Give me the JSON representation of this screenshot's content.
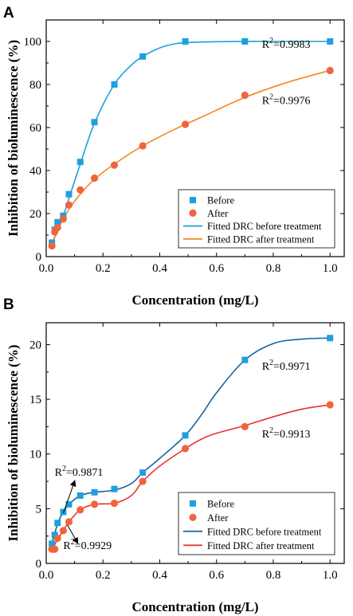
{
  "chart_data": [
    {
      "type": "scatter",
      "panel_label": "A",
      "xlabel": "Concentration (mg/L)",
      "ylabel": "Inhibition of bioluminescence (%)",
      "xlim": [
        0,
        1.05
      ],
      "ylim": [
        0,
        110
      ],
      "xticks": [
        0.0,
        0.2,
        0.4,
        0.6,
        0.8,
        1.0
      ],
      "xtick_labels": [
        "0.0",
        "0.2",
        "0.4",
        "0.6",
        "0.8",
        "1.0"
      ],
      "yticks": [
        0,
        20,
        40,
        60,
        80,
        100
      ],
      "ytick_labels": [
        "0",
        "20",
        "40",
        "60",
        "80",
        "100"
      ],
      "grid": false,
      "legend_position": "bottom-right",
      "series": [
        {
          "name": "Before",
          "kind": "points",
          "marker": "square",
          "color": "#1ea0dc",
          "x": [
            0.02,
            0.03,
            0.04,
            0.06,
            0.08,
            0.12,
            0.17,
            0.24,
            0.34,
            0.49,
            0.7,
            1.0
          ],
          "y": [
            6.5,
            12.5,
            16,
            19,
            29,
            44,
            62.5,
            80,
            93,
            100,
            100,
            100
          ]
        },
        {
          "name": "After",
          "kind": "points",
          "marker": "circle",
          "color": "#f0643c",
          "x": [
            0.02,
            0.03,
            0.04,
            0.06,
            0.08,
            0.12,
            0.17,
            0.24,
            0.34,
            0.49,
            0.7,
            1.0
          ],
          "y": [
            5,
            11.5,
            13.5,
            17.5,
            24,
            31,
            36.5,
            42.5,
            51.5,
            61.5,
            75,
            86.5
          ]
        },
        {
          "name": "Fitted DRC before treatment",
          "kind": "line",
          "color": "#1ea0dc",
          "x": [
            0.02,
            0.05,
            0.08,
            0.12,
            0.17,
            0.24,
            0.3,
            0.34,
            0.4,
            0.45,
            0.5,
            0.6,
            0.7,
            0.8,
            0.9,
            1.0
          ],
          "y": [
            6,
            15,
            27,
            43,
            62,
            80,
            89,
            93,
            97,
            98.8,
            99.5,
            99.9,
            100,
            100,
            100,
            100
          ]
        },
        {
          "name": "Fitted DRC after treatment",
          "kind": "line",
          "color": "#f5871e",
          "x": [
            0.02,
            0.05,
            0.08,
            0.12,
            0.17,
            0.24,
            0.34,
            0.45,
            0.55,
            0.7,
            0.85,
            1.0
          ],
          "y": [
            6,
            15,
            22,
            29,
            36,
            43,
            51.5,
            59,
            65,
            74,
            81,
            86.5
          ]
        }
      ],
      "annotations": [
        {
          "text_base": "R",
          "text_sup": "2",
          "text_rest": "=0.9983",
          "x": 0.76,
          "y": 97
        },
        {
          "text_base": "R",
          "text_sup": "2",
          "text_rest": "=0.9976",
          "x": 0.76,
          "y": 71
        }
      ]
    },
    {
      "type": "scatter",
      "panel_label": "B",
      "xlabel": "Concentration (mg/L)",
      "ylabel": "Inhibition of bioluminescence (%)",
      "xlim": [
        0,
        1.05
      ],
      "ylim": [
        0,
        22
      ],
      "xticks": [
        0.0,
        0.2,
        0.4,
        0.6,
        0.8,
        1.0
      ],
      "xtick_labels": [
        "0.0",
        "0.2",
        "0.4",
        "0.6",
        "0.8",
        "1.0"
      ],
      "yticks": [
        0,
        5,
        10,
        15,
        20
      ],
      "ytick_labels": [
        "0",
        "5",
        "10",
        "15",
        "20"
      ],
      "grid": false,
      "legend_position": "bottom-right",
      "series": [
        {
          "name": "Before",
          "kind": "points",
          "marker": "square",
          "color": "#1ea0dc",
          "x": [
            0.02,
            0.03,
            0.04,
            0.06,
            0.08,
            0.12,
            0.17,
            0.24,
            0.34,
            0.49,
            0.7,
            1.0
          ],
          "y": [
            1.8,
            2.6,
            3.7,
            4.7,
            5.4,
            6.2,
            6.5,
            6.8,
            8.3,
            11.7,
            18.6,
            20.6
          ]
        },
        {
          "name": "After",
          "kind": "points",
          "marker": "circle",
          "color": "#f0643c",
          "x": [
            0.02,
            0.03,
            0.04,
            0.06,
            0.08,
            0.12,
            0.17,
            0.24,
            0.34,
            0.49,
            0.7,
            1.0
          ],
          "y": [
            1.3,
            1.3,
            2.3,
            3.0,
            3.8,
            4.9,
            5.4,
            5.5,
            7.5,
            10.5,
            12.5,
            14.5
          ]
        },
        {
          "name": "Fitted DRC before treatment",
          "kind": "line",
          "color": "#1464a0",
          "x": [
            0.02,
            0.04,
            0.06,
            0.08,
            0.12,
            0.17,
            0.24,
            0.3,
            0.34,
            0.4,
            0.49,
            0.55,
            0.6,
            0.7,
            0.8,
            0.9,
            1.0
          ],
          "y": [
            1.8,
            3.6,
            4.7,
            5.4,
            6.2,
            6.5,
            6.7,
            7.3,
            8.3,
            9.6,
            11.7,
            13.7,
            15.6,
            18.6,
            20.1,
            20.5,
            20.6
          ]
        },
        {
          "name": "Fitted DRC after treatment",
          "kind": "line",
          "color": "#e63232",
          "x": [
            0.02,
            0.04,
            0.06,
            0.08,
            0.12,
            0.17,
            0.24,
            0.3,
            0.34,
            0.4,
            0.49,
            0.55,
            0.6,
            0.7,
            0.8,
            0.9,
            1.0
          ],
          "y": [
            1.2,
            2.2,
            3.0,
            3.8,
            4.9,
            5.4,
            5.5,
            6.2,
            7.5,
            8.9,
            10.5,
            11.4,
            11.9,
            12.6,
            13.4,
            14.1,
            14.5
          ]
        }
      ],
      "annotations": [
        {
          "text_base": "R",
          "text_sup": "2",
          "text_rest": "=0.9971",
          "x": 0.76,
          "y": 17.7
        },
        {
          "text_base": "R",
          "text_sup": "2",
          "text_rest": "=0.9913",
          "x": 0.76,
          "y": 11.5
        },
        {
          "text_base": "R",
          "text_sup": "2",
          "text_rest": "=0.9871",
          "x": 0.03,
          "y": 8.0
        },
        {
          "text_base": "R",
          "text_sup": "2",
          "text_rest": "=0.9929",
          "x": 0.06,
          "y": 1.3
        }
      ],
      "arrows": [
        {
          "from": [
            0.06,
            4.6
          ],
          "to": [
            0.1,
            7.5
          ]
        },
        {
          "from": [
            0.075,
            3.5
          ],
          "to": [
            0.11,
            1.9
          ]
        }
      ]
    }
  ]
}
